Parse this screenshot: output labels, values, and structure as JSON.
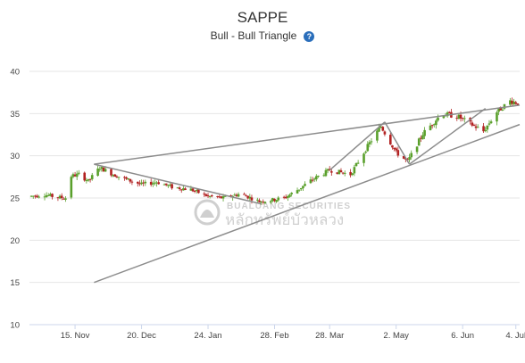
{
  "chart_data": {
    "type": "candlestick",
    "title": "SAPPE",
    "subtitle": "Bull - Bull Triangle",
    "ylim": [
      10,
      40
    ],
    "y_ticks": [
      10,
      15,
      20,
      25,
      30,
      35,
      40
    ],
    "x_range": [
      "2023-10-22",
      "2024-07-06"
    ],
    "x_ticks": [
      {
        "date": "2023-11-15",
        "label": "15. Nov"
      },
      {
        "date": "2023-12-20",
        "label": "20. Dec"
      },
      {
        "date": "2024-01-24",
        "label": "24. Jan"
      },
      {
        "date": "2024-02-28",
        "label": "28. Feb"
      },
      {
        "date": "2024-03-28",
        "label": "28. Mar"
      },
      {
        "date": "2024-05-02",
        "label": "2. May"
      },
      {
        "date": "2024-06-06",
        "label": "6. Jun"
      },
      {
        "date": "2024-07-04",
        "label": "4. Jul"
      }
    ],
    "price_path": [
      [
        "2023-10-22",
        25.2
      ],
      [
        "2023-10-30",
        25.4
      ],
      [
        "2023-11-05",
        25.1
      ],
      [
        "2023-11-10",
        25.0
      ],
      [
        "2023-11-13",
        27.6
      ],
      [
        "2023-11-17",
        27.8
      ],
      [
        "2023-11-22",
        27.0
      ],
      [
        "2023-11-28",
        28.6
      ],
      [
        "2023-12-05",
        27.8
      ],
      [
        "2023-12-12",
        27.2
      ],
      [
        "2023-12-20",
        26.6
      ],
      [
        "2023-12-28",
        26.9
      ],
      [
        "2024-01-05",
        26.3
      ],
      [
        "2024-01-15",
        26.0
      ],
      [
        "2024-01-24",
        25.2
      ],
      [
        "2024-02-01",
        25.0
      ],
      [
        "2024-02-10",
        25.5
      ],
      [
        "2024-02-20",
        24.6
      ],
      [
        "2024-02-28",
        24.8
      ],
      [
        "2024-03-05",
        25.1
      ],
      [
        "2024-03-12",
        26.1
      ],
      [
        "2024-03-19",
        27.2
      ],
      [
        "2024-03-28",
        28.3
      ],
      [
        "2024-04-08",
        27.8
      ],
      [
        "2024-04-18",
        31.5
      ],
      [
        "2024-04-24",
        33.5
      ],
      [
        "2024-05-02",
        30.4
      ],
      [
        "2024-05-08",
        29.3
      ],
      [
        "2024-05-16",
        32.6
      ],
      [
        "2024-05-26",
        35.0
      ],
      [
        "2024-06-04",
        34.6
      ],
      [
        "2024-06-10",
        33.8
      ],
      [
        "2024-06-17",
        32.9
      ],
      [
        "2024-06-24",
        35.2
      ],
      [
        "2024-07-01",
        36.5
      ],
      [
        "2024-07-06",
        36.2
      ]
    ],
    "trendlines": [
      {
        "from": [
          "2023-11-25",
          15.0
        ],
        "to": [
          "2024-07-06",
          33.7
        ]
      },
      {
        "from": [
          "2023-11-25",
          29.0
        ],
        "to": [
          "2024-07-06",
          36.0
        ]
      },
      {
        "from": [
          "2023-11-25",
          29.0
        ],
        "to": [
          "2024-02-21",
          24.3
        ]
      },
      {
        "from": [
          "2024-03-28",
          28.3
        ],
        "to": [
          "2024-04-26",
          34.0
        ]
      },
      {
        "from": [
          "2024-04-26",
          34.0
        ],
        "to": [
          "2024-05-09",
          29.0
        ]
      },
      {
        "from": [
          "2024-05-09",
          29.0
        ],
        "to": [
          "2024-06-18",
          35.6
        ]
      }
    ],
    "grid": true,
    "legend": "none"
  },
  "watermark": {
    "line1": "BUALUANG SECURITIES",
    "line2": "หลักทรัพย์บัวหลวง"
  },
  "colors": {
    "up": "#5aa02c",
    "down": "#b22222",
    "trendline": "#8c8c8c",
    "grid": "#e6e6e6",
    "help_icon": "#2a6ebb"
  }
}
